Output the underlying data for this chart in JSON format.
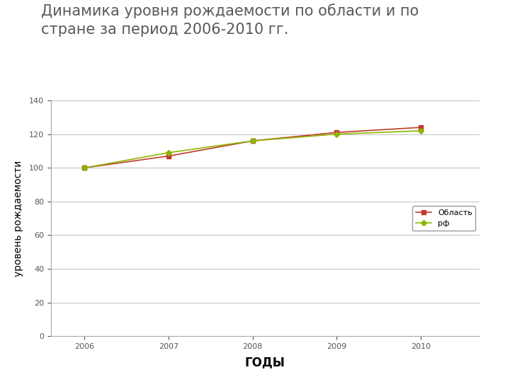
{
  "title_line1": "Динамика уровня рождаемости по области и по",
  "title_line2": "стране за период 2006-2010 гг.",
  "xlabel": "ГОДЫ",
  "ylabel": "уровень рождаемости",
  "years": [
    2006,
    2007,
    2008,
    2009,
    2010
  ],
  "oblast_values": [
    100,
    107,
    116,
    121,
    124
  ],
  "rf_values": [
    100,
    109,
    116,
    120,
    122
  ],
  "oblast_color": "#c0392b",
  "rf_color": "#8db600",
  "oblast_label": "Область",
  "rf_label": "рф",
  "ylim": [
    0,
    140
  ],
  "yticks": [
    0,
    20,
    40,
    60,
    80,
    100,
    120,
    140
  ],
  "title_fontsize": 15,
  "axis_label_fontsize": 10,
  "tick_fontsize": 8,
  "legend_fontsize": 8,
  "background_color": "#ffffff",
  "title_color": "#595959",
  "header_bar_color": "#95b3d7",
  "header_orange_color": "#e26b0a",
  "grid_color": "#bfbfbf"
}
